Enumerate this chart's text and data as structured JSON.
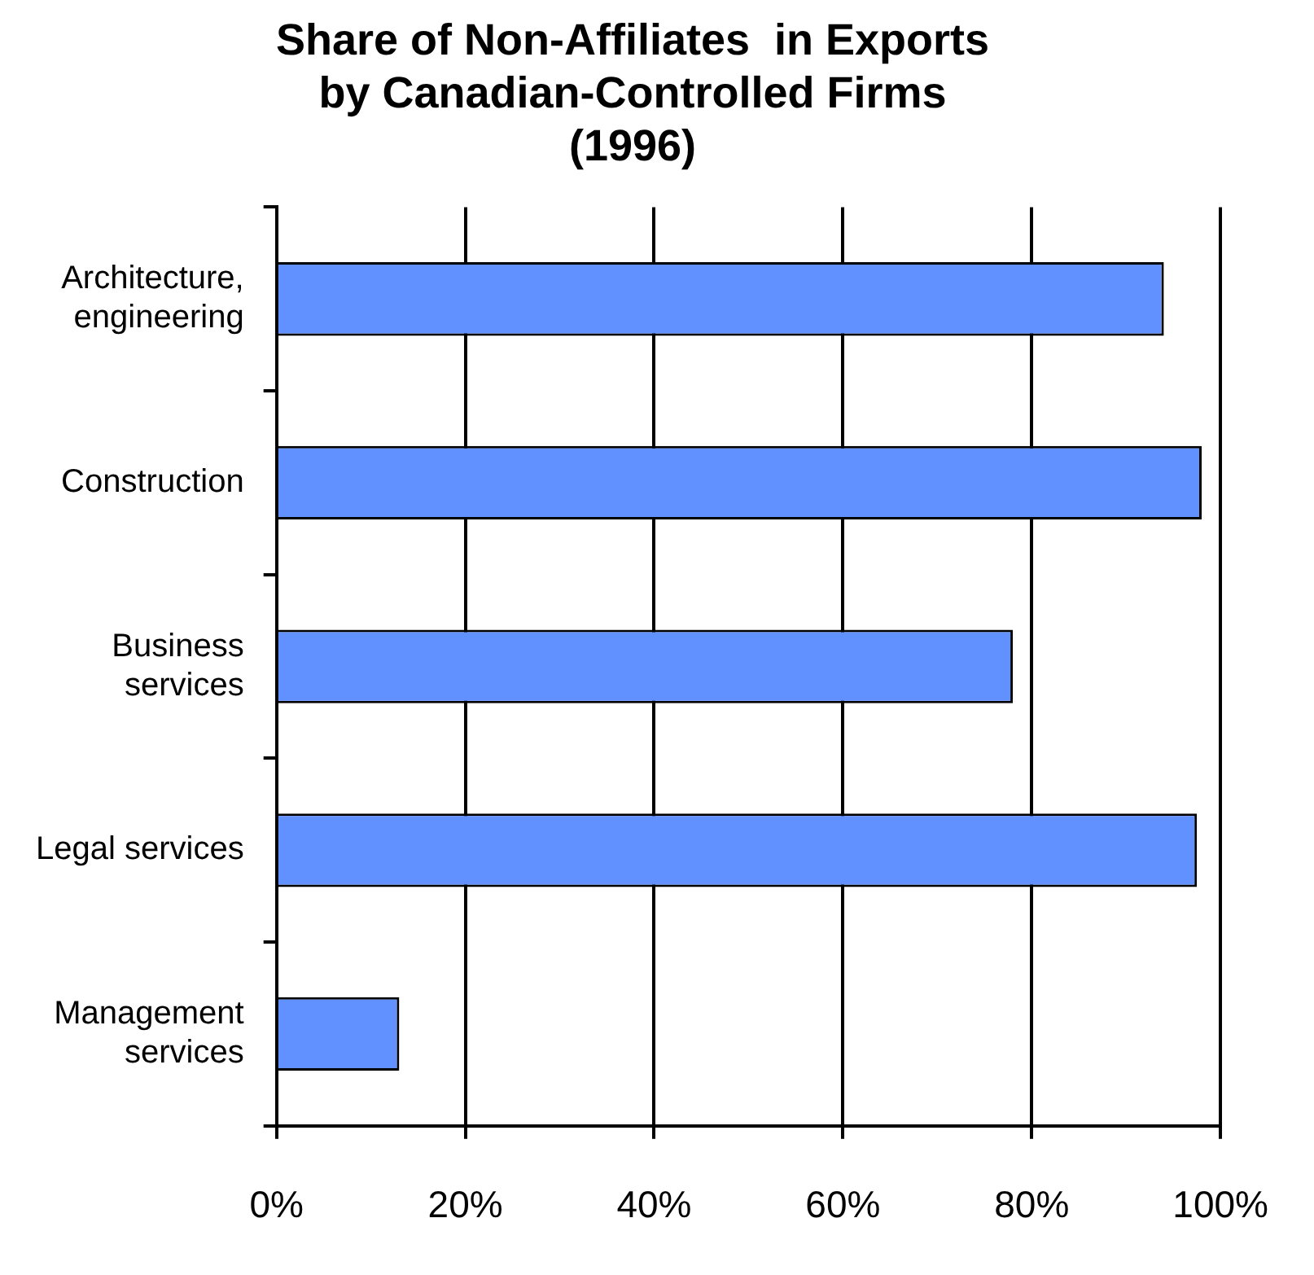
{
  "chart_data": {
    "type": "bar",
    "orientation": "horizontal",
    "title": "Share of Non-Affiliates  in Exports\nby Canadian-Controlled Firms\n(1996)",
    "categories": [
      "Architecture, engineering",
      "Construction",
      "Business services",
      "Legal services",
      "Management services"
    ],
    "values": [
      94,
      98,
      78,
      97.5,
      13
    ],
    "color": "#6190ff",
    "xlim": [
      0,
      100
    ],
    "xticks": [
      {
        "value": 0,
        "label": "0%"
      },
      {
        "value": 20,
        "label": "20%"
      },
      {
        "value": 40,
        "label": "40%"
      },
      {
        "value": 60,
        "label": "60%"
      },
      {
        "value": 80,
        "label": "80%"
      },
      {
        "value": 100,
        "label": "100%"
      }
    ],
    "grid": "x",
    "legend": false
  }
}
